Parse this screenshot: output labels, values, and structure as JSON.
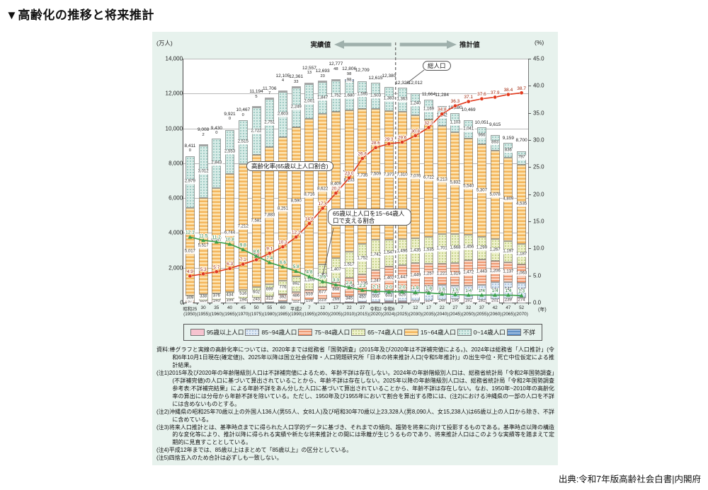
{
  "page": {
    "title": "▼高齢化の推移と将来推計",
    "source": "出典:令和7年版高齢社会白書|内閣府"
  },
  "chart_data": {
    "type": "bar",
    "subtype": "stacked-bar-with-lines",
    "axis": {
      "unit_left": "(万人)",
      "unit_right": "(%)",
      "unit_x": "(年)",
      "ylim_left": [
        0,
        14000
      ],
      "ytick_left_step": 2000,
      "ylim_right": [
        0,
        45.0
      ],
      "ytick_right_step": 5.0,
      "grid": true
    },
    "categories_era": [
      "昭和25",
      "30",
      "35",
      "40",
      "45",
      "50",
      "55",
      "60",
      "平成2",
      "7",
      "12",
      "17",
      "22",
      "27",
      "令和2",
      "令和6",
      "7",
      "12",
      "17",
      "22",
      "27",
      "32",
      "37",
      "42",
      "47",
      "52"
    ],
    "categories_year": [
      "(1950)",
      "(1955)",
      "(1960)",
      "(1965)",
      "(1970)",
      "(1975)",
      "(1980)",
      "(1985)",
      "(1990)",
      "(1995)",
      "(2000)",
      "(2005)",
      "(2010)",
      "(2015)",
      "(2020)",
      "(2024)",
      "(2025)",
      "(2030)",
      "(2035)",
      "(2040)",
      "(2045)",
      "(2050)",
      "(2055)",
      "(2060)",
      "(2065)",
      "(2070)"
    ],
    "totals": [
      8411,
      9008,
      9430,
      9921,
      10467,
      11194,
      11706,
      12105,
      12361,
      12557,
      12693,
      12777,
      12806,
      12709,
      12615,
      12380,
      12326,
      12012,
      11664,
      11284,
      10880,
      10469,
      10051,
      9615,
      9159,
      8700
    ],
    "series": [
      {
        "name": "95歳以上人口",
        "pattern": "pink-solid",
        "values": [
          null,
          null,
          null,
          null,
          null,
          null,
          null,
          null,
          null,
          null,
          null,
          24,
          34,
          42,
          58,
          72,
          81,
          105,
          124,
          149,
          196,
          191,
          182,
          201,
          239,
          274
        ]
      },
      {
        "name": "85~94歳人口",
        "pattern": "blue-dots",
        "values": [
          10,
          13,
          19,
          25,
          30,
          39,
          53,
          79,
          112,
          158,
          223,
          269,
          345,
          450,
          555,
          603,
          626,
          707,
          857,
          857,
          760,
          770,
          853,
          970,
          945,
          843
        ]
      },
      {
        "name": "75~84歳人口",
        "pattern": "salmon-stripes",
        "values": [
          97,
          126,
          145,
          164,
          194,
          245,
          313,
          392,
          486,
          559,
          677,
          868,
          1029,
          1136,
          1247,
          1402,
          1447,
          1449,
          1257,
          1221,
          1319,
          1472,
          1443,
          1206,
          1137,
          1063
        ]
      },
      {
        "name": "65~74歳人口",
        "pattern": "green-dots",
        "values": [
          309,
          338,
          376,
          434,
          516,
          602,
          699,
          776,
          892,
          1109,
          1301,
          1407,
          1517,
          1752,
          1742,
          1547,
          1496,
          1435,
          1535,
          1701,
          1668,
          1456,
          1299,
          1267,
          1197,
          1187
        ]
      },
      {
        "name": "15~64歳人口",
        "pattern": "orange-stripes",
        "values": [
          5017,
          5517,
          6047,
          6744,
          7212,
          7581,
          7883,
          8251,
          8590,
          8716,
          8622,
          8409,
          8103,
          7735,
          7509,
          7373,
          7310,
          7076,
          6722,
          6213,
          5832,
          5540,
          5307,
          5078,
          4809,
          4535
        ]
      },
      {
        "name": "0~14歳人口",
        "pattern": "teal-dots",
        "values": [
          2979,
          3012,
          2843,
          2553,
          2515,
          2722,
          2751,
          2603,
          2249,
          2001,
          1847,
          1752,
          1680,
          1595,
          1503,
          1383,
          1363,
          1240,
          1169,
          1142,
          1103,
          1041,
          966,
          893,
          836,
          797
        ]
      },
      {
        "name": "不詳",
        "pattern": "blue-stripes",
        "values": [
          0,
          2,
          0,
          0,
          0,
          5,
          7,
          4,
          33,
          13,
          23,
          48,
          98,
          null,
          null,
          null,
          null,
          null,
          null,
          null,
          null,
          null,
          null,
          null,
          null,
          null
        ]
      }
    ],
    "lines": [
      {
        "name": "高齢化率(65歳以上人口割合)",
        "axis": "right",
        "color": "#e23a1e",
        "marker": "circle",
        "values": [
          "4.9",
          "5.3",
          "5.7",
          "6.3",
          "7.1",
          "7.9",
          "9.1",
          "10.3",
          "12.1",
          "14.6",
          "17.4",
          "20.2",
          "23.0",
          "26.6",
          "28.6",
          "29.3",
          "29.6",
          "30.8",
          "32.3",
          "34.8",
          "36.3",
          "37.1",
          "37.6",
          "37.9",
          "38.4",
          "38.7"
        ]
      },
      {
        "name": "65歳以上人口を15~64歳人口で支える割合",
        "axis": "right",
        "color": "#3ba14b",
        "marker": "triangle",
        "values": [
          "12.1",
          "11.5",
          "11.2",
          "10.8",
          "9.8",
          "8.6",
          "7.4",
          "6.6",
          "5.8",
          "4.8",
          "3.9",
          "3.3",
          "2.8",
          "2.3",
          "2.1",
          "2.0",
          "2.0",
          "1.9",
          "1.8",
          "1.6",
          "1.5",
          "1.4",
          "1.4",
          "1.4",
          "1.4",
          "1.3"
        ]
      }
    ],
    "annotations": {
      "actual": "実績値",
      "projected": "推計値",
      "total_population": "総人口",
      "aging_rate": "高齢化率(65歳以上人口割合)",
      "support_ratio": "65歳以上人口を15~64歳人口で支える割合",
      "divider_between": [
        "令和6",
        "7"
      ]
    }
  },
  "notes": [
    "資料:棒グラフと実線の高齢化率については、2020年までは総務省「国勢調査」(2015年及び2020年は不詳補完値による。)、2024年は総務省「人口推計」(令和6年10月1日現在(確定値))、2025年以降は国立社会保障・人口問題研究所「日本の将来推計人口(令和5年推計)」の出生中位・死亡中位仮定による推計結果。",
    "(注1)2015年及び2020年の年齢階級別人口は不詳補完値によるため、年齢不詳は存在しない。2024年の年齢階級別人口は、総務省統計局「令和2年国勢調査」(不詳補完値)の人口に基づいて算出されていることから、年齢不詳は存在しない。2025年以降の年齢階級別人口は、総務省統計局「令和2年国勢調査 参考表:不詳補完結果」による年齢不詳をあん分した人口に基づいて算出されていることから、年齢不詳は存在しない。なお、1950年~2010年の高齢化率の算出には分母から年齢不詳を除いている。ただし、1950年及び1955年において割合を算出する際には、(注2)における沖縄県の一部の人口を不詳には含めないものとする。",
    "(注2)沖縄県の昭和25年70歳以上の外国人136人(男55人、女81人)及び昭和30年70歳以上23,328人(男8,090人、女15,238人)は65歳以上の人口から除き、不詳に含めている。",
    "(注3)将来人口推計とは、基準時点までに得られた人口学的データに基づき、それまでの傾向、趨勢を将来に向けて投影するものである。基準時点以降の構造的な変化等により、推計以降に得られる実績や新たな将来推計との間には乖離が生じうるものであり、将来推計人口はこのような実績等を踏まえて定期的に見直すこととしている。",
    "(注4)平成12年までは、85歳以上はまとめて「85歳以上」の区分としている。",
    "(注5)四捨五入のため合計は必ずしも一致しない。"
  ]
}
